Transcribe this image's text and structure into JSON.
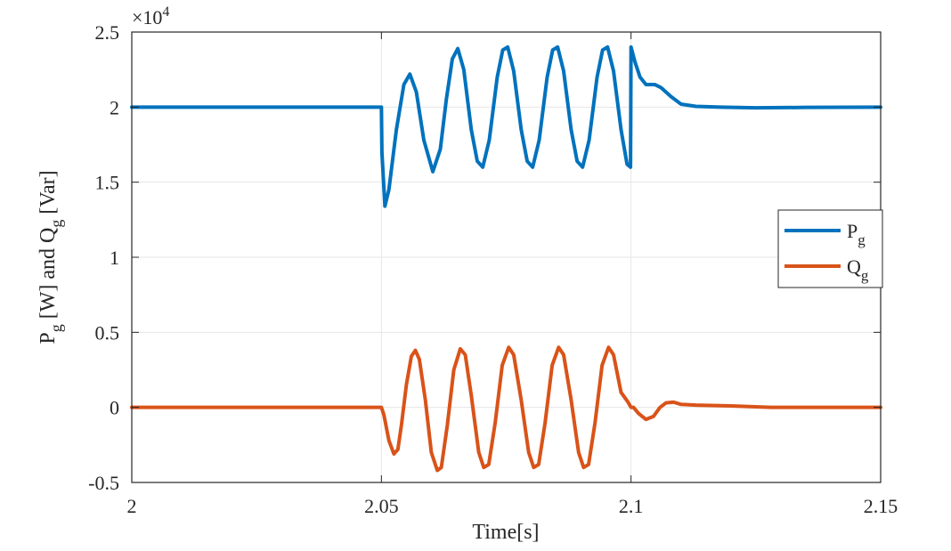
{
  "chart_data": {
    "type": "line",
    "title": "",
    "xlabel": "Time[s]",
    "ylabel": {
      "p": "P",
      "sub1": "g",
      "mid": " [W] and Q",
      "sub2": "g",
      "end": " [Var]"
    },
    "xlim": [
      2.0,
      2.15
    ],
    "ylim": [
      -0.5,
      2.5
    ],
    "x_ticks": [
      2.0,
      2.05,
      2.1,
      2.15
    ],
    "x_tick_labels": [
      "2",
      "2.05",
      "2.1",
      "2.15"
    ],
    "y_ticks": [
      -0.5,
      0,
      0.5,
      1,
      1.5,
      2,
      2.5
    ],
    "y_tick_labels": [
      "-0.5",
      "0",
      "0.5",
      "1",
      "1.5",
      "2",
      "2.5"
    ],
    "y_exponent": {
      "base": "×10",
      "power": "4"
    },
    "grid": true,
    "legend_position": "right",
    "series": [
      {
        "name": "P",
        "name_sub": "g",
        "color": "#0072BD",
        "points": [
          [
            2.0,
            2.0
          ],
          [
            2.05,
            2.0
          ],
          [
            2.0501,
            1.7
          ],
          [
            2.0507,
            1.34
          ],
          [
            2.0515,
            1.45
          ],
          [
            2.053,
            1.85
          ],
          [
            2.0545,
            2.15
          ],
          [
            2.0557,
            2.22
          ],
          [
            2.057,
            2.1
          ],
          [
            2.0585,
            1.78
          ],
          [
            2.0603,
            1.57
          ],
          [
            2.0618,
            1.72
          ],
          [
            2.063,
            2.05
          ],
          [
            2.0642,
            2.32
          ],
          [
            2.0653,
            2.39
          ],
          [
            2.0665,
            2.25
          ],
          [
            2.068,
            1.85
          ],
          [
            2.0692,
            1.64
          ],
          [
            2.0703,
            1.6
          ],
          [
            2.0716,
            1.78
          ],
          [
            2.0732,
            2.2
          ],
          [
            2.0743,
            2.38
          ],
          [
            2.0753,
            2.4
          ],
          [
            2.0765,
            2.24
          ],
          [
            2.078,
            1.85
          ],
          [
            2.0792,
            1.64
          ],
          [
            2.0803,
            1.6
          ],
          [
            2.0816,
            1.78
          ],
          [
            2.0832,
            2.2
          ],
          [
            2.0843,
            2.38
          ],
          [
            2.0853,
            2.4
          ],
          [
            2.0865,
            2.24
          ],
          [
            2.088,
            1.85
          ],
          [
            2.0892,
            1.64
          ],
          [
            2.0903,
            1.6
          ],
          [
            2.0916,
            1.78
          ],
          [
            2.0932,
            2.2
          ],
          [
            2.0943,
            2.38
          ],
          [
            2.0953,
            2.4
          ],
          [
            2.0965,
            2.24
          ],
          [
            2.098,
            1.85
          ],
          [
            2.0992,
            1.62
          ],
          [
            2.0999,
            1.6
          ],
          [
            2.1,
            2.4
          ],
          [
            2.1008,
            2.3
          ],
          [
            2.1018,
            2.2
          ],
          [
            2.103,
            2.15
          ],
          [
            2.1048,
            2.15
          ],
          [
            2.106,
            2.13
          ],
          [
            2.108,
            2.07
          ],
          [
            2.11,
            2.02
          ],
          [
            2.113,
            2.005
          ],
          [
            2.118,
            2.0
          ],
          [
            2.125,
            1.995
          ],
          [
            2.135,
            1.998
          ],
          [
            2.15,
            2.0
          ]
        ]
      },
      {
        "name": "Q",
        "name_sub": "g",
        "color": "#D95319",
        "points": [
          [
            2.0,
            0.0
          ],
          [
            2.05,
            0.0
          ],
          [
            2.0505,
            -0.05
          ],
          [
            2.0515,
            -0.22
          ],
          [
            2.0525,
            -0.31
          ],
          [
            2.0533,
            -0.28
          ],
          [
            2.054,
            -0.12
          ],
          [
            2.055,
            0.15
          ],
          [
            2.056,
            0.34
          ],
          [
            2.0568,
            0.38
          ],
          [
            2.0576,
            0.32
          ],
          [
            2.0588,
            0.05
          ],
          [
            2.06,
            -0.3
          ],
          [
            2.0612,
            -0.42
          ],
          [
            2.062,
            -0.4
          ],
          [
            2.0632,
            -0.12
          ],
          [
            2.0645,
            0.25
          ],
          [
            2.0658,
            0.39
          ],
          [
            2.0668,
            0.35
          ],
          [
            2.068,
            0.08
          ],
          [
            2.0695,
            -0.3
          ],
          [
            2.0705,
            -0.4
          ],
          [
            2.0715,
            -0.38
          ],
          [
            2.0728,
            -0.1
          ],
          [
            2.0742,
            0.28
          ],
          [
            2.0755,
            0.4
          ],
          [
            2.0765,
            0.35
          ],
          [
            2.078,
            0.05
          ],
          [
            2.0795,
            -0.3
          ],
          [
            2.0805,
            -0.4
          ],
          [
            2.0815,
            -0.38
          ],
          [
            2.0828,
            -0.1
          ],
          [
            2.0842,
            0.28
          ],
          [
            2.0855,
            0.4
          ],
          [
            2.0865,
            0.35
          ],
          [
            2.088,
            0.05
          ],
          [
            2.0895,
            -0.3
          ],
          [
            2.0905,
            -0.4
          ],
          [
            2.0915,
            -0.38
          ],
          [
            2.0928,
            -0.1
          ],
          [
            2.0942,
            0.28
          ],
          [
            2.0955,
            0.4
          ],
          [
            2.0965,
            0.35
          ],
          [
            2.098,
            0.1
          ],
          [
            2.0993,
            0.04
          ],
          [
            2.1,
            0.0
          ],
          [
            2.1005,
            0.0
          ],
          [
            2.1015,
            -0.04
          ],
          [
            2.103,
            -0.08
          ],
          [
            2.1045,
            -0.06
          ],
          [
            2.1058,
            0.0
          ],
          [
            2.107,
            0.03
          ],
          [
            2.1085,
            0.035
          ],
          [
            2.11,
            0.02
          ],
          [
            2.113,
            0.015
          ],
          [
            2.12,
            0.01
          ],
          [
            2.128,
            0.0
          ],
          [
            2.135,
            0.0
          ],
          [
            2.15,
            0.0
          ]
        ]
      }
    ]
  }
}
